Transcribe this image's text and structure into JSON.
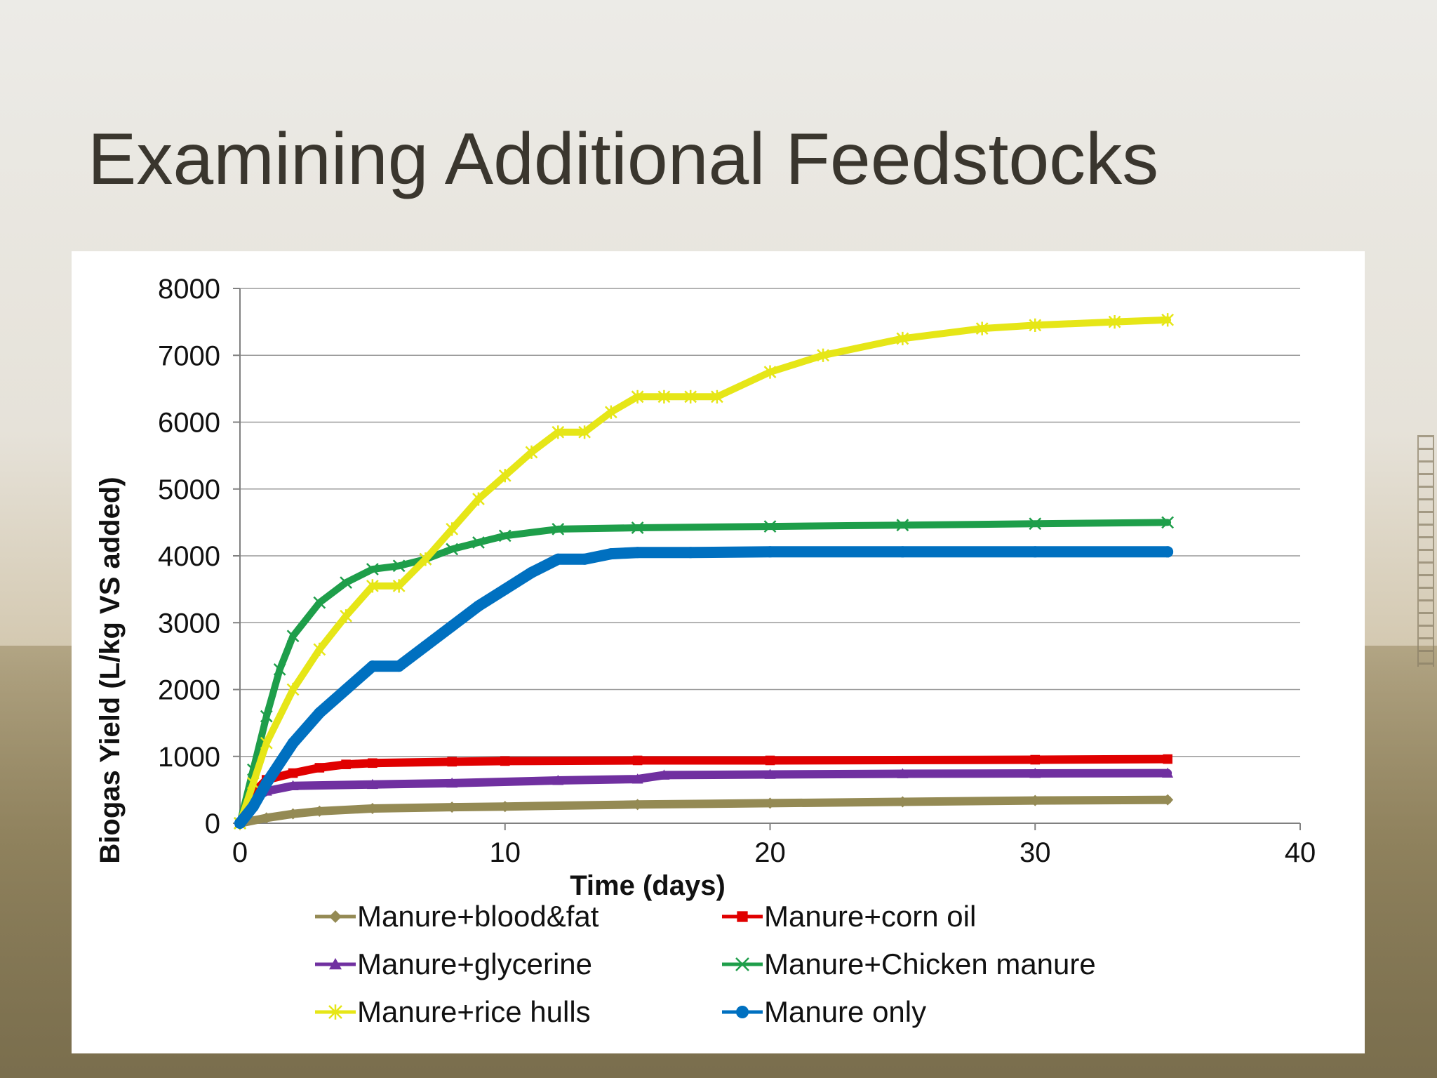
{
  "slide": {
    "title": "Examining Additional Feedstocks"
  },
  "chart_data": {
    "type": "line",
    "title": "",
    "xlabel": "Time (days)",
    "ylabel": "Biogas Yield (L/kg VS added)",
    "xlim": [
      0,
      40
    ],
    "ylim": [
      0,
      8000
    ],
    "x_ticks": [
      0,
      10,
      20,
      30,
      40
    ],
    "y_ticks": [
      0,
      1000,
      2000,
      3000,
      4000,
      5000,
      6000,
      7000,
      8000
    ],
    "grid": "horizontal",
    "legend_position": "bottom",
    "series": [
      {
        "name": "Manure+blood&fat",
        "color": "#948a54",
        "marker": "diamond",
        "x": [
          0,
          1,
          2,
          3,
          5,
          8,
          10,
          15,
          20,
          25,
          30,
          35
        ],
        "values": [
          0,
          80,
          140,
          180,
          220,
          240,
          250,
          280,
          300,
          320,
          340,
          350
        ]
      },
      {
        "name": "Manure+corn oil",
        "color": "#e00000",
        "marker": "square",
        "x": [
          0,
          0.5,
          1,
          2,
          3,
          4,
          5,
          8,
          10,
          15,
          20,
          30,
          35
        ],
        "values": [
          0,
          450,
          650,
          750,
          830,
          880,
          900,
          920,
          930,
          940,
          940,
          950,
          960
        ]
      },
      {
        "name": "Manure+glycerine",
        "color": "#7030a0",
        "marker": "triangle",
        "x": [
          0,
          0.5,
          1,
          2,
          5,
          8,
          12,
          15,
          16,
          20,
          25,
          30,
          35
        ],
        "values": [
          0,
          350,
          480,
          560,
          580,
          600,
          640,
          660,
          720,
          730,
          740,
          745,
          750
        ]
      },
      {
        "name": "Manure+Chicken manure",
        "color": "#1e9e4a",
        "marker": "x",
        "x": [
          0,
          0.5,
          1,
          1.5,
          2,
          3,
          4,
          5,
          6,
          7,
          8,
          9,
          10,
          12,
          15,
          20,
          25,
          30,
          35
        ],
        "values": [
          0,
          800,
          1600,
          2300,
          2800,
          3300,
          3600,
          3800,
          3850,
          3950,
          4100,
          4200,
          4300,
          4400,
          4420,
          4440,
          4460,
          4480,
          4500
        ]
      },
      {
        "name": "Manure+rice hulls",
        "color": "#e6e617",
        "marker": "star",
        "x": [
          0,
          0.5,
          1,
          2,
          3,
          4,
          5,
          6,
          7,
          8,
          9,
          10,
          11,
          12,
          13,
          14,
          15,
          16,
          17,
          18,
          20,
          22,
          25,
          28,
          30,
          33,
          35
        ],
        "values": [
          0,
          600,
          1200,
          2000,
          2600,
          3100,
          3550,
          3550,
          3950,
          4400,
          4850,
          5200,
          5550,
          5850,
          5850,
          6150,
          6380,
          6380,
          6380,
          6380,
          6750,
          7000,
          7250,
          7400,
          7450,
          7500,
          7530
        ]
      },
      {
        "name": "Manure only",
        "color": "#0070c0",
        "marker": "circle",
        "x": [
          0,
          0.5,
          1,
          2,
          3,
          4,
          5,
          6,
          7,
          8,
          9,
          10,
          11,
          12,
          13,
          14,
          15,
          17,
          20,
          25,
          30,
          35
        ],
        "values": [
          0,
          250,
          600,
          1200,
          1650,
          2000,
          2350,
          2350,
          2650,
          2950,
          3250,
          3500,
          3750,
          3950,
          3950,
          4030,
          4050,
          4050,
          4060,
          4060,
          4060,
          4060
        ]
      }
    ]
  }
}
